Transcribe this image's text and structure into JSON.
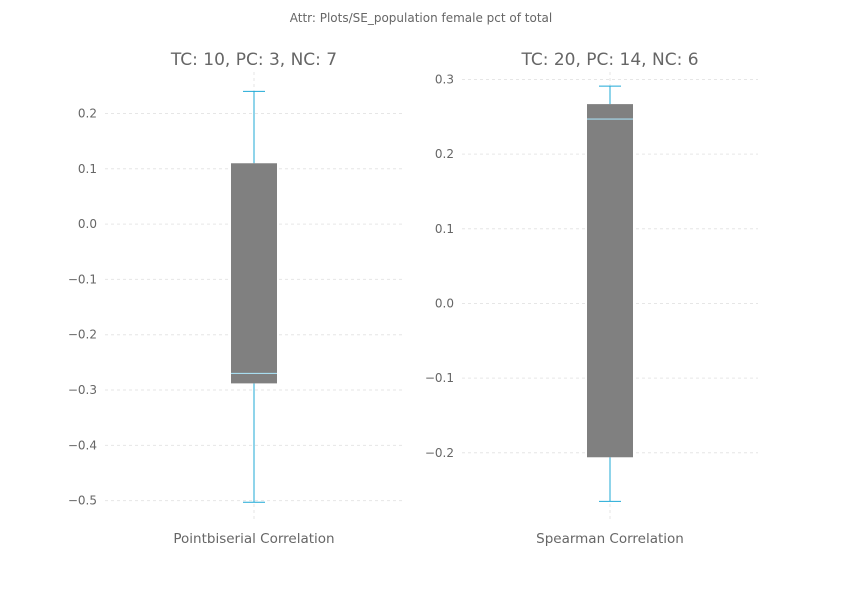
{
  "suptitle": "Attr: Plots/SE_population female pct of total",
  "colors": {
    "box_fill": "#808080",
    "whisker": "#1fa9d6",
    "median": "#a8ddf0",
    "grid": "#e6e6e6",
    "text": "#666666"
  },
  "chart_data": [
    {
      "type": "box",
      "title": "TC: 10, PC: 3, NC: 7",
      "category": "Pointbiserial Correlation",
      "ylim": [
        -0.535,
        0.275
      ],
      "yticks": [
        0.2,
        0.1,
        0.0,
        -0.1,
        -0.2,
        -0.3,
        -0.4,
        -0.5
      ],
      "ytick_labels": [
        "0.2",
        "0.1",
        "0.0",
        "−0.1",
        "−0.2",
        "−0.3",
        "−0.4",
        "−0.5"
      ],
      "whisker_low": -0.503,
      "q1": -0.288,
      "median": -0.27,
      "q3": 0.11,
      "whisker_high": 0.24,
      "grid": true
    },
    {
      "type": "box",
      "title": "TC: 20, PC: 14, NC: 6",
      "category": "Spearman Correlation",
      "ylim": [
        -0.29,
        0.31
      ],
      "yticks": [
        0.3,
        0.2,
        0.1,
        0.0,
        -0.1,
        -0.2
      ],
      "ytick_labels": [
        "0.3",
        "0.2",
        "0.1",
        "0.0",
        "−0.1",
        "−0.2"
      ],
      "whisker_low": -0.265,
      "q1": -0.206,
      "median": 0.247,
      "q3": 0.267,
      "whisker_high": 0.291,
      "grid": true
    }
  ]
}
